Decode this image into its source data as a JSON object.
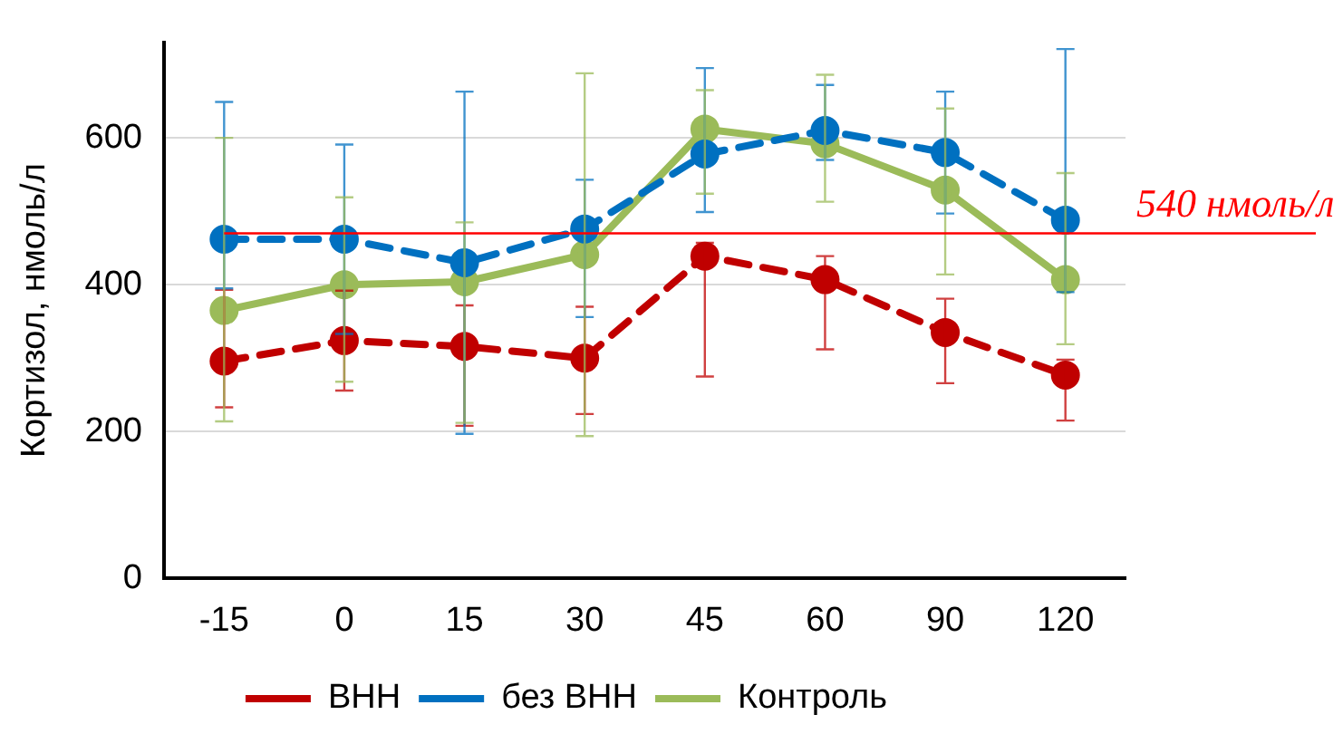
{
  "chart_data": {
    "type": "line",
    "ylabel": "Кортизол, нмоль/л",
    "categories": [
      "-15",
      "0",
      "15",
      "30",
      "45",
      "60",
      "90",
      "120"
    ],
    "series": [
      {
        "name": "ВНН",
        "color": "#c00000",
        "line_style": "dashed",
        "values": [
          296,
          324,
          316,
          300,
          439,
          407,
          335,
          277
        ],
        "errors": [
          [
            233,
            393
          ],
          68,
          [
            208,
            372
          ],
          [
            224,
            370
          ],
          [
            275,
            457
          ],
          [
            312,
            439
          ],
          [
            266,
            381
          ],
          [
            215,
            298
          ]
        ]
      },
      {
        "name": "без ВНН",
        "color": "#0070c0",
        "line_style": "dashed",
        "values": [
          462,
          462,
          430,
          476,
          578,
          610,
          580,
          488
        ],
        "errors": [
          [
            395,
            649
          ],
          129,
          233,
          [
            356,
            543
          ],
          [
            499,
            695
          ],
          [
            570,
            672
          ],
          83,
          [
            390,
            721
          ]
        ]
      },
      {
        "name": "Контроль",
        "color": "#9bbb59",
        "line_style": "solid",
        "values": [
          365,
          400,
          404,
          441,
          612,
          592,
          529,
          407
        ],
        "errors": [
          [
            214,
            600
          ],
          [
            268,
            519
          ],
          [
            212,
            485
          ],
          247,
          [
            524,
            665
          ],
          [
            513,
            686
          ],
          [
            414,
            640
          ],
          [
            319,
            552
          ]
        ]
      }
    ],
    "ylim": [
      0,
      730
    ],
    "yticks": [
      0,
      200,
      400,
      600
    ],
    "grid": "y",
    "legend": "bottom",
    "marker": "circle",
    "ref_lines": [
      {
        "axis": "y",
        "value": 470,
        "label": "540 нмоль/л",
        "color": "#ff0000"
      }
    ]
  }
}
